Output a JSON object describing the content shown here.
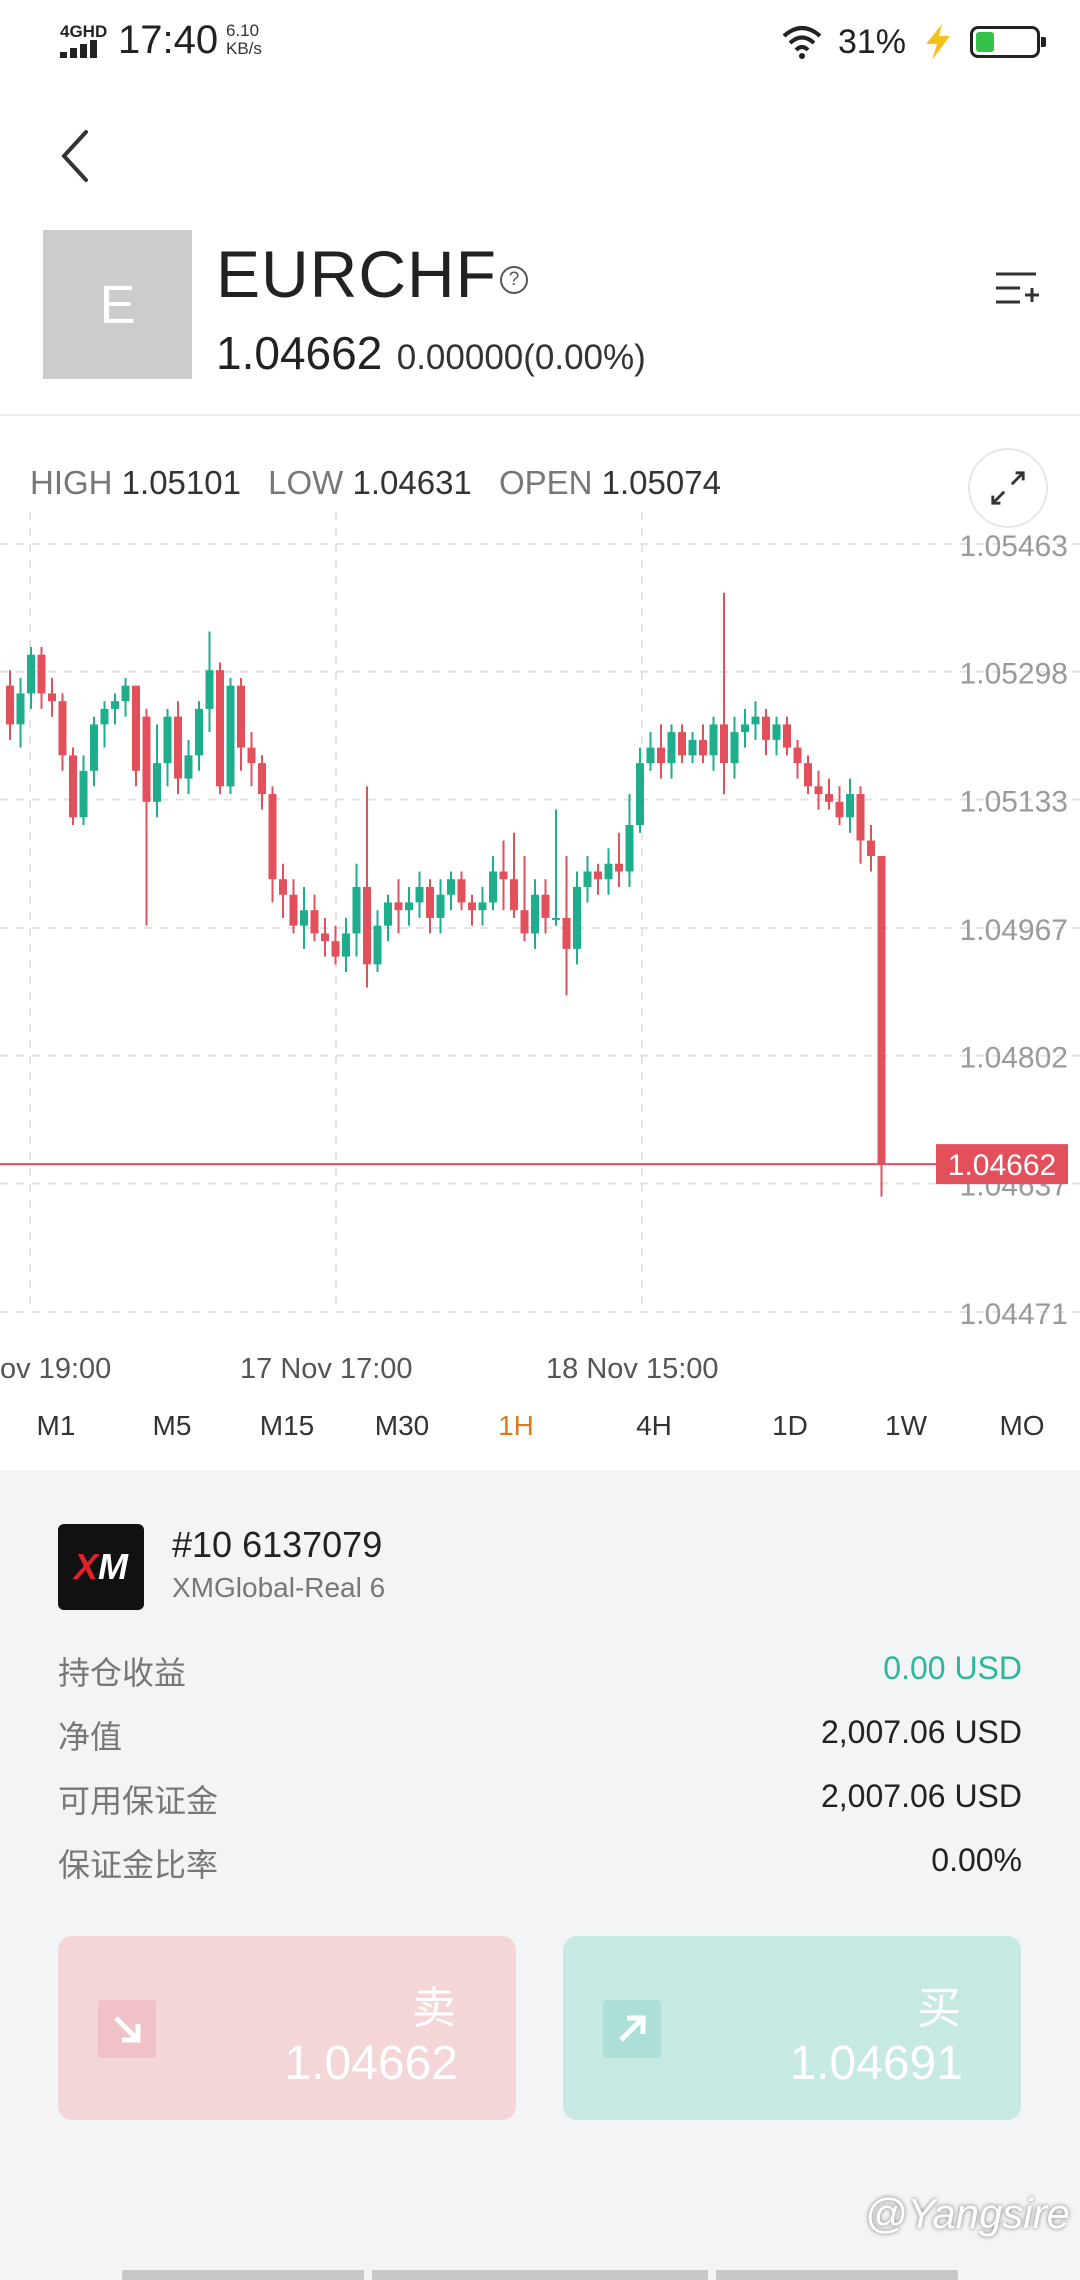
{
  "status_bar": {
    "network": "4GHD",
    "time": "17:40",
    "speed_value": "6.10",
    "speed_unit": "KB/s",
    "battery_pct": "31%",
    "battery_level": 0.31
  },
  "symbol": {
    "avatar_letter": "E",
    "name": "EURCHF",
    "help_glyph": "?",
    "price": "1.04662",
    "change": "0.00000(0.00%)"
  },
  "ohlc": {
    "high_label": "HIGH",
    "high": "1.05101",
    "low_label": "LOW",
    "low": "1.04631",
    "open_label": "OPEN",
    "open": "1.05074"
  },
  "chart_data": {
    "type": "candlestick",
    "y_ticks": [
      1.05463,
      1.05298,
      1.05133,
      1.04967,
      1.04802,
      1.04637,
      1.04471
    ],
    "y_tick_labels": [
      "1.05463",
      "1.05298",
      "1.05133",
      "1.04967",
      "1.04802",
      "1.04637",
      "1.04471"
    ],
    "x_tick_labels": [
      "ov  19:00",
      "17 Nov  17:00",
      "18 Nov  15:00"
    ],
    "current_price": 1.04662,
    "current_price_label": "1.04662",
    "grid": true,
    "up_color": "#1eae8c",
    "down_color": "#e2505c",
    "candles": [
      [
        1.0528,
        1.053,
        1.0521,
        1.0523
      ],
      [
        1.0523,
        1.0529,
        1.052,
        1.0527
      ],
      [
        1.0527,
        1.0533,
        1.0525,
        1.0532
      ],
      [
        1.0532,
        1.0533,
        1.0525,
        1.0527
      ],
      [
        1.0527,
        1.0529,
        1.0524,
        1.0526
      ],
      [
        1.0526,
        1.0527,
        1.0517,
        1.0519
      ],
      [
        1.0519,
        1.052,
        1.051,
        1.0511
      ],
      [
        1.0511,
        1.0519,
        1.051,
        1.0517
      ],
      [
        1.0517,
        1.0524,
        1.0515,
        1.0523
      ],
      [
        1.0523,
        1.0526,
        1.052,
        1.0525
      ],
      [
        1.0525,
        1.0527,
        1.0523,
        1.0526
      ],
      [
        1.0526,
        1.0529,
        1.0524,
        1.0528
      ],
      [
        1.0528,
        1.0528,
        1.0515,
        1.0517
      ],
      [
        1.0524,
        1.0525,
        1.0497,
        1.0513
      ],
      [
        1.0513,
        1.0523,
        1.0511,
        1.0518
      ],
      [
        1.0518,
        1.0525,
        1.0515,
        1.0524
      ],
      [
        1.0524,
        1.0526,
        1.0514,
        1.0516
      ],
      [
        1.0516,
        1.0521,
        1.0514,
        1.0519
      ],
      [
        1.0519,
        1.0526,
        1.0517,
        1.0525
      ],
      [
        1.0525,
        1.0535,
        1.0522,
        1.053
      ],
      [
        1.053,
        1.0531,
        1.0514,
        1.0515
      ],
      [
        1.0515,
        1.0529,
        1.0514,
        1.0528
      ],
      [
        1.0528,
        1.0529,
        1.0517,
        1.052
      ],
      [
        1.052,
        1.0522,
        1.0515,
        1.0518
      ],
      [
        1.0518,
        1.0519,
        1.0512,
        1.0514
      ],
      [
        1.0514,
        1.0515,
        1.05,
        1.0503
      ],
      [
        1.0503,
        1.0505,
        1.0498,
        1.0501
      ],
      [
        1.0501,
        1.0503,
        1.0496,
        1.0497
      ],
      [
        1.0497,
        1.0502,
        1.0494,
        1.0499
      ],
      [
        1.0499,
        1.0501,
        1.0495,
        1.0496
      ],
      [
        1.0496,
        1.0498,
        1.0493,
        1.0495
      ],
      [
        1.0495,
        1.0497,
        1.0492,
        1.0493
      ],
      [
        1.0493,
        1.0498,
        1.0491,
        1.0496
      ],
      [
        1.0496,
        1.0505,
        1.0493,
        1.0502
      ],
      [
        1.0502,
        1.0515,
        1.0489,
        1.0492
      ],
      [
        1.0492,
        1.0499,
        1.0491,
        1.0497
      ],
      [
        1.0497,
        1.0501,
        1.0495,
        1.05
      ],
      [
        1.05,
        1.0503,
        1.0496,
        1.0499
      ],
      [
        1.0499,
        1.0502,
        1.0497,
        1.05
      ],
      [
        1.05,
        1.0504,
        1.0498,
        1.0502
      ],
      [
        1.0502,
        1.0503,
        1.0496,
        1.0498
      ],
      [
        1.0498,
        1.0503,
        1.0496,
        1.0501
      ],
      [
        1.0501,
        1.0504,
        1.0499,
        1.0503
      ],
      [
        1.0503,
        1.0504,
        1.0499,
        1.05
      ],
      [
        1.05,
        1.0501,
        1.0497,
        1.0499
      ],
      [
        1.0499,
        1.0502,
        1.0497,
        1.05
      ],
      [
        1.05,
        1.0506,
        1.0499,
        1.0504
      ],
      [
        1.0504,
        1.0508,
        1.0499,
        1.0503
      ],
      [
        1.0503,
        1.0509,
        1.0498,
        1.0499
      ],
      [
        1.0499,
        1.0506,
        1.0495,
        1.0496
      ],
      [
        1.0496,
        1.0503,
        1.0494,
        1.0501
      ],
      [
        1.0501,
        1.0503,
        1.0496,
        1.0498
      ],
      [
        1.0498,
        1.0512,
        1.0497,
        1.0498
      ],
      [
        1.0498,
        1.0506,
        1.0488,
        1.0494
      ],
      [
        1.0494,
        1.0504,
        1.0492,
        1.0502
      ],
      [
        1.0502,
        1.0506,
        1.05,
        1.0504
      ],
      [
        1.0504,
        1.0505,
        1.0501,
        1.0503
      ],
      [
        1.0503,
        1.0507,
        1.0501,
        1.0505
      ],
      [
        1.0505,
        1.0509,
        1.0502,
        1.0504
      ],
      [
        1.0504,
        1.0514,
        1.0502,
        1.051
      ],
      [
        1.051,
        1.052,
        1.0509,
        1.0518
      ],
      [
        1.0518,
        1.0522,
        1.0517,
        1.052
      ],
      [
        1.052,
        1.0523,
        1.0516,
        1.0518
      ],
      [
        1.0518,
        1.0523,
        1.0516,
        1.0522
      ],
      [
        1.0522,
        1.0523,
        1.0518,
        1.0519
      ],
      [
        1.0519,
        1.0522,
        1.0518,
        1.0521
      ],
      [
        1.0521,
        1.0523,
        1.0518,
        1.0519
      ],
      [
        1.0519,
        1.0524,
        1.0517,
        1.0523
      ],
      [
        1.0523,
        1.054,
        1.0514,
        1.0518
      ],
      [
        1.0518,
        1.0524,
        1.0516,
        1.0522
      ],
      [
        1.0522,
        1.0525,
        1.052,
        1.0523
      ],
      [
        1.0523,
        1.0526,
        1.0521,
        1.0524
      ],
      [
        1.0524,
        1.0525,
        1.0519,
        1.0521
      ],
      [
        1.0521,
        1.0524,
        1.0519,
        1.0523
      ],
      [
        1.0523,
        1.0524,
        1.0519,
        1.052
      ],
      [
        1.052,
        1.0521,
        1.0516,
        1.0518
      ],
      [
        1.0518,
        1.0519,
        1.0514,
        1.0515
      ],
      [
        1.0515,
        1.0517,
        1.0512,
        1.0514
      ],
      [
        1.0514,
        1.0516,
        1.0512,
        1.0513
      ],
      [
        1.0513,
        1.0515,
        1.051,
        1.0511
      ],
      [
        1.0511,
        1.0516,
        1.0509,
        1.0514
      ],
      [
        1.0514,
        1.0515,
        1.0505,
        1.0508
      ],
      [
        1.0508,
        1.051,
        1.0504,
        1.0506
      ],
      [
        1.0506,
        1.0506,
        1.0462,
        1.04662
      ]
    ]
  },
  "timeframes": {
    "active": "1H",
    "items": [
      "M1",
      "M5",
      "M15",
      "M30",
      "1H",
      "4H",
      "1D",
      "1W",
      "MO"
    ]
  },
  "account": {
    "logo_x": "X",
    "logo_m": "M",
    "number": "#10  6137079",
    "name": "XMGlobal-Real 6",
    "rows": [
      {
        "label": "持仓收益",
        "value": "0.00 USD"
      },
      {
        "label": "净值",
        "value": "2,007.06 USD"
      },
      {
        "label": "可用保证金",
        "value": "2,007.06 USD"
      },
      {
        "label": "保证金比率",
        "value": "0.00%"
      }
    ]
  },
  "trade": {
    "sell_label": "卖",
    "sell_price": "1.04662",
    "buy_label": "买",
    "buy_price": "1.04691"
  },
  "watermark": "@Yangsire",
  "colors": {
    "accent": "#e07a1e",
    "profit": "#2bb89a",
    "sell_bg": "#f4d5d8",
    "buy_bg": "#c6e9e4"
  }
}
